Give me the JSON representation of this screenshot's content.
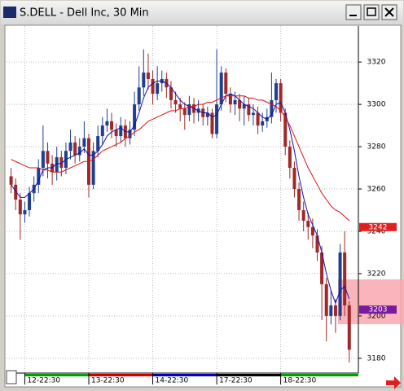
{
  "window_title": "S.DELL - Dell Inc, 30 Min",
  "chart_data": {
    "type": "candlestick",
    "open": [
      3266,
      3262,
      3255,
      3248,
      3250,
      3258,
      3262,
      3270,
      3278,
      3272,
      3268,
      3275,
      3270,
      3278,
      3282,
      3276,
      3280,
      3284,
      3262,
      3278,
      3285,
      3290,
      3292,
      3288,
      3285,
      3290,
      3284,
      3288,
      3300,
      3308,
      3315,
      3312,
      3305,
      3310,
      3312,
      3308,
      3302,
      3300,
      3298,
      3295,
      3300,
      3296,
      3298,
      3294,
      3296,
      3286,
      3300,
      3315,
      3305,
      3300,
      3302,
      3298,
      3300,
      3295,
      3296,
      3290,
      3292,
      3294,
      3302,
      3310,
      3296,
      3280,
      3270,
      3260,
      3250,
      3245,
      3242,
      3238,
      3230,
      3215,
      3200,
      3205,
      3200,
      3230,
      3205
    ],
    "high": [
      3270,
      3265,
      3258,
      3254,
      3261,
      3266,
      3274,
      3290,
      3282,
      3276,
      3280,
      3278,
      3282,
      3288,
      3285,
      3284,
      3292,
      3286,
      3282,
      3290,
      3294,
      3298,
      3296,
      3291,
      3294,
      3293,
      3292,
      3306,
      3318,
      3326,
      3324,
      3316,
      3318,
      3316,
      3315,
      3311,
      3306,
      3303,
      3301,
      3304,
      3303,
      3302,
      3300,
      3299,
      3298,
      3326,
      3318,
      3317,
      3308,
      3306,
      3305,
      3304,
      3303,
      3300,
      3299,
      3296,
      3298,
      3315,
      3312,
      3312,
      3298,
      3283,
      3273,
      3263,
      3254,
      3249,
      3246,
      3241,
      3233,
      3218,
      3212,
      3208,
      3234,
      3240,
      3207
    ],
    "low": [
      3258,
      3250,
      3236,
      3244,
      3247,
      3254,
      3258,
      3266,
      3265,
      3262,
      3264,
      3266,
      3267,
      3274,
      3272,
      3273,
      3277,
      3256,
      3260,
      3275,
      3281,
      3287,
      3284,
      3280,
      3282,
      3280,
      3281,
      3285,
      3297,
      3304,
      3307,
      3300,
      3302,
      3306,
      3303,
      3298,
      3296,
      3292,
      3288,
      3292,
      3291,
      3292,
      3290,
      3290,
      3284,
      3284,
      3297,
      3301,
      3296,
      3295,
      3292,
      3290,
      3292,
      3290,
      3286,
      3287,
      3289,
      3291,
      3296,
      3292,
      3276,
      3265,
      3256,
      3245,
      3240,
      3236,
      3232,
      3226,
      3198,
      3188,
      3196,
      3192,
      3198,
      3200,
      3178
    ],
    "close": [
      3262,
      3255,
      3248,
      3250,
      3258,
      3262,
      3270,
      3278,
      3272,
      3268,
      3275,
      3270,
      3278,
      3282,
      3276,
      3280,
      3284,
      3262,
      3278,
      3285,
      3290,
      3292,
      3288,
      3285,
      3290,
      3284,
      3288,
      3300,
      3308,
      3315,
      3312,
      3305,
      3310,
      3312,
      3308,
      3302,
      3300,
      3298,
      3295,
      3300,
      3296,
      3298,
      3294,
      3296,
      3286,
      3300,
      3315,
      3305,
      3300,
      3302,
      3298,
      3300,
      3295,
      3296,
      3290,
      3292,
      3294,
      3302,
      3310,
      3296,
      3280,
      3270,
      3260,
      3250,
      3245,
      3242,
      3238,
      3230,
      3215,
      3200,
      3205,
      3200,
      3230,
      3205,
      3184
    ],
    "up_color": "#1f3f8f",
    "down_color": "#a02828",
    "lines": [
      {
        "color": "#1010b0",
        "values": [
          3262,
          3259,
          3256,
          3256,
          3258,
          3260,
          3264,
          3269,
          3270,
          3270,
          3272,
          3272,
          3274,
          3275,
          3276,
          3277,
          3279,
          3276,
          3276,
          3278,
          3281,
          3285,
          3287,
          3288,
          3289,
          3287,
          3287,
          3290,
          3296,
          3303,
          3308,
          3310,
          3311,
          3311,
          3310,
          3308,
          3305,
          3302,
          3300,
          3299,
          3298,
          3297,
          3296,
          3296,
          3294,
          3295,
          3300,
          3304,
          3305,
          3304,
          3302,
          3300,
          3299,
          3298,
          3296,
          3294,
          3293,
          3295,
          3300,
          3301,
          3296,
          3288,
          3278,
          3266,
          3256,
          3248,
          3243,
          3238,
          3230,
          3220,
          3212,
          3206,
          3212,
          3214,
          3208
        ]
      },
      {
        "color": "#e01010",
        "values": [
          3274,
          3273,
          3272,
          3271,
          3270,
          3270,
          3270,
          3269,
          3269,
          3268,
          3268,
          3268,
          3269,
          3270,
          3271,
          3272,
          3273,
          3273,
          3274,
          3276,
          3278,
          3279,
          3280,
          3281,
          3282,
          3284,
          3285,
          3287,
          3288,
          3290,
          3292,
          3293,
          3294,
          3295,
          3296,
          3297,
          3297,
          3298,
          3298,
          3299,
          3299,
          3300,
          3300,
          3301,
          3301,
          3302,
          3303,
          3304,
          3304,
          3304,
          3304,
          3304,
          3303,
          3303,
          3302,
          3302,
          3301,
          3300,
          3299,
          3297,
          3294,
          3290,
          3285,
          3280,
          3275,
          3270,
          3266,
          3262,
          3258,
          3255,
          3252,
          3250,
          3249,
          3247,
          3245
        ]
      }
    ],
    "xlim": [
      -1,
      76
    ],
    "xticks": [
      {
        "value": 3,
        "label": "12-22:30"
      },
      {
        "value": 17,
        "label": "13-22:30"
      },
      {
        "value": 31,
        "label": "14-22:30"
      },
      {
        "value": 45,
        "label": "17-22:30"
      },
      {
        "value": 59,
        "label": "18-22:30"
      }
    ],
    "xtick_colors": [
      "#00a000",
      "#d00000",
      "#0000c0",
      "#000000",
      "#00a000"
    ],
    "ylim": [
      3173,
      3337
    ],
    "yticks": [
      3180,
      3200,
      3220,
      3240,
      3260,
      3280,
      3300,
      3320
    ],
    "grid": true,
    "price_markers": [
      {
        "value": 3242,
        "color": "#e02020"
      },
      {
        "value": 3203,
        "color": "#7a1aa0"
      }
    ]
  }
}
